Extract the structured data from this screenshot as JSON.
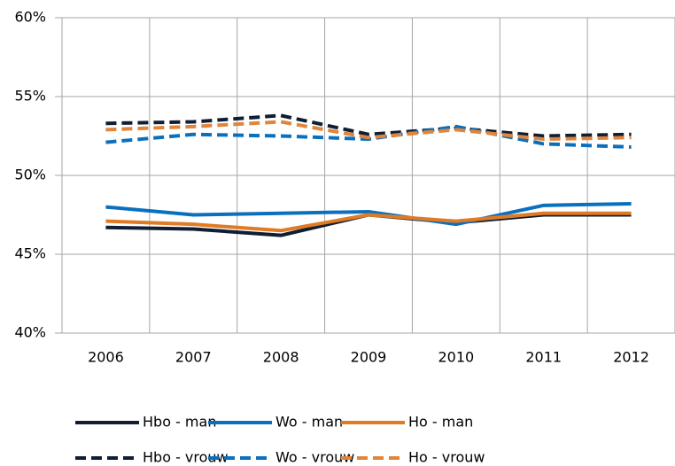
{
  "chart_data": {
    "type": "line",
    "categories": [
      "2006",
      "2007",
      "2008",
      "2009",
      "2010",
      "2011",
      "2012"
    ],
    "series": [
      {
        "name": "Hbo - man",
        "color": "#0f1e33",
        "line_style": "solid",
        "values": [
          46.7,
          46.6,
          46.2,
          47.5,
          47.0,
          47.5,
          47.5
        ]
      },
      {
        "name": "Wo - man",
        "color": "#0a70be",
        "line_style": "solid",
        "values": [
          48.0,
          47.5,
          47.6,
          47.7,
          46.9,
          48.1,
          48.2
        ]
      },
      {
        "name": "Ho - man",
        "color": "#e07b25",
        "line_style": "solid",
        "values": [
          47.1,
          46.9,
          46.5,
          47.5,
          47.1,
          47.6,
          47.6
        ]
      },
      {
        "name": "Hbo - vrouw",
        "color": "#0f1e33",
        "line_style": "dashed",
        "values": [
          53.3,
          53.4,
          53.8,
          52.6,
          53.0,
          52.5,
          52.6
        ]
      },
      {
        "name": "Wo - vrouw",
        "color": "#0a70be",
        "line_style": "dashed",
        "values": [
          52.1,
          52.6,
          52.5,
          52.3,
          53.1,
          52.0,
          51.8
        ]
      },
      {
        "name": "Ho - vrouw",
        "color": "#e0853a",
        "line_style": "dashed",
        "values": [
          52.9,
          53.1,
          53.4,
          52.4,
          52.9,
          52.3,
          52.4
        ]
      }
    ],
    "ylim": [
      40,
      60
    ],
    "yticks": [
      {
        "value": 40,
        "label": "40%"
      },
      {
        "value": 45,
        "label": "45%"
      },
      {
        "value": 50,
        "label": "50%"
      },
      {
        "value": 55,
        "label": "55%"
      },
      {
        "value": 60,
        "label": "60%"
      }
    ],
    "grid": true,
    "legend": "bottom"
  }
}
